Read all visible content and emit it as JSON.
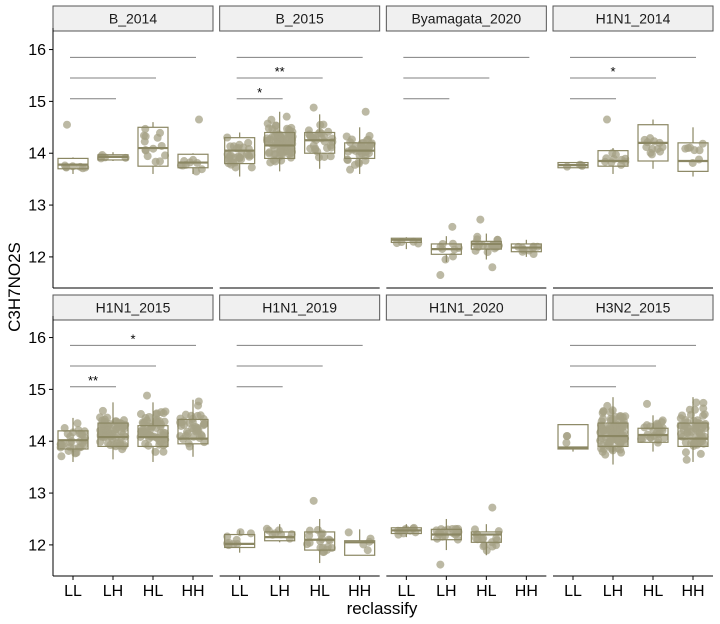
{
  "chart_data": {
    "type": "box",
    "title": "",
    "xlabel": "reclassify",
    "ylabel": "C3H7NO2S",
    "categories": [
      "LL",
      "LH",
      "HL",
      "HH"
    ],
    "ylim": [
      11.4,
      16.3
    ],
    "yticks": [
      12,
      13,
      14,
      15,
      16
    ],
    "grid": false,
    "colors": {
      "box": "#8b8763",
      "point": "#a5a286",
      "sig_line": "#808080"
    },
    "panels": [
      {
        "name": "B_2014",
        "boxes": [
          {
            "category": "LL",
            "q1": 13.7,
            "median": 13.78,
            "q3": 13.9,
            "low": 13.6,
            "high": 13.92,
            "n": 7
          },
          {
            "category": "LH",
            "q1": 13.87,
            "median": 13.93,
            "q3": 13.97,
            "low": 13.85,
            "high": 14.02,
            "n": 5
          },
          {
            "category": "HL",
            "q1": 13.75,
            "median": 14.1,
            "q3": 14.5,
            "low": 13.6,
            "high": 14.6,
            "n": 14
          },
          {
            "category": "HH",
            "q1": 13.72,
            "median": 13.82,
            "q3": 13.98,
            "low": 13.6,
            "high": 14.0,
            "n": 9
          }
        ],
        "outliers": [
          {
            "category": "LL",
            "y": 14.55
          },
          {
            "category": "HH",
            "y": 14.65
          }
        ],
        "comparisons": [
          {
            "from": "LL",
            "to": "LH",
            "y": 15.05,
            "label": ""
          },
          {
            "from": "LL",
            "to": "HL",
            "y": 15.45,
            "label": ""
          },
          {
            "from": "LL",
            "to": "HH",
            "y": 15.85,
            "label": ""
          }
        ]
      },
      {
        "name": "B_2015",
        "boxes": [
          {
            "category": "LL",
            "q1": 13.8,
            "median": 14.05,
            "q3": 14.3,
            "low": 13.55,
            "high": 14.4,
            "n": 30
          },
          {
            "category": "LH",
            "q1": 13.9,
            "median": 14.15,
            "q3": 14.4,
            "low": 13.65,
            "high": 14.8,
            "n": 80
          },
          {
            "category": "HL",
            "q1": 14.0,
            "median": 14.25,
            "q3": 14.4,
            "low": 13.7,
            "high": 14.75,
            "n": 30
          },
          {
            "category": "HH",
            "q1": 13.9,
            "median": 14.05,
            "q3": 14.2,
            "low": 13.6,
            "high": 14.5,
            "n": 40
          }
        ],
        "outliers": [
          {
            "category": "HL",
            "y": 14.88
          },
          {
            "category": "HH",
            "y": 14.8
          }
        ],
        "comparisons": [
          {
            "from": "LL",
            "to": "LH",
            "y": 15.05,
            "label": "*"
          },
          {
            "from": "LL",
            "to": "HL",
            "y": 15.45,
            "label": "**"
          },
          {
            "from": "LL",
            "to": "HH",
            "y": 15.85,
            "label": ""
          }
        ]
      },
      {
        "name": "Byamagata_2020",
        "boxes": [
          {
            "category": "LL",
            "q1": 12.28,
            "median": 12.33,
            "q3": 12.36,
            "low": 12.15,
            "high": 12.38,
            "n": 4
          },
          {
            "category": "LH",
            "q1": 12.05,
            "median": 12.15,
            "q3": 12.25,
            "low": 11.9,
            "high": 12.4,
            "n": 8
          },
          {
            "category": "HL",
            "q1": 12.15,
            "median": 12.25,
            "q3": 12.3,
            "low": 11.95,
            "high": 12.45,
            "n": 20
          },
          {
            "category": "HH",
            "q1": 12.1,
            "median": 12.18,
            "q3": 12.25,
            "low": 12.0,
            "high": 12.33,
            "n": 10
          }
        ],
        "outliers": [
          {
            "category": "LH",
            "y": 11.65
          },
          {
            "category": "LH",
            "y": 12.58
          },
          {
            "category": "HL",
            "y": 12.72
          },
          {
            "category": "HL",
            "y": 11.8
          }
        ],
        "comparisons": [
          {
            "from": "LL",
            "to": "LH",
            "y": 15.05,
            "label": ""
          },
          {
            "from": "LL",
            "to": "HL",
            "y": 15.45,
            "label": ""
          },
          {
            "from": "LL",
            "to": "HH",
            "y": 15.85,
            "label": ""
          }
        ]
      },
      {
        "name": "H1N1_2014",
        "boxes": [
          {
            "category": "LL",
            "q1": 13.72,
            "median": 13.77,
            "q3": 13.82,
            "low": 13.72,
            "high": 13.82,
            "n": 4
          },
          {
            "category": "LH",
            "q1": 13.75,
            "median": 13.85,
            "q3": 14.05,
            "low": 13.6,
            "high": 14.1,
            "n": 10
          },
          {
            "category": "HL",
            "q1": 13.85,
            "median": 14.2,
            "q3": 14.55,
            "low": 13.7,
            "high": 14.65,
            "n": 12
          },
          {
            "category": "HH",
            "q1": 13.65,
            "median": 13.85,
            "q3": 14.2,
            "low": 13.55,
            "high": 14.5,
            "n": 8
          }
        ],
        "outliers": [
          {
            "category": "LH",
            "y": 14.65
          }
        ],
        "comparisons": [
          {
            "from": "LL",
            "to": "LH",
            "y": 15.05,
            "label": ""
          },
          {
            "from": "LL",
            "to": "HL",
            "y": 15.45,
            "label": "*"
          },
          {
            "from": "LL",
            "to": "HH",
            "y": 15.85,
            "label": ""
          }
        ]
      },
      {
        "name": "H1N1_2015",
        "boxes": [
          {
            "category": "LL",
            "q1": 13.85,
            "median": 14.02,
            "q3": 14.2,
            "low": 13.6,
            "high": 14.45,
            "n": 30
          },
          {
            "category": "LH",
            "q1": 13.9,
            "median": 14.08,
            "q3": 14.35,
            "low": 13.65,
            "high": 14.75,
            "n": 70
          },
          {
            "category": "HL",
            "q1": 13.9,
            "median": 14.08,
            "q3": 14.3,
            "low": 13.6,
            "high": 14.75,
            "n": 60
          },
          {
            "category": "HH",
            "q1": 13.95,
            "median": 14.05,
            "q3": 14.42,
            "low": 13.7,
            "high": 14.8,
            "n": 40
          }
        ],
        "outliers": [
          {
            "category": "HL",
            "y": 14.88
          }
        ],
        "comparisons": [
          {
            "from": "LL",
            "to": "LH",
            "y": 15.05,
            "label": "**"
          },
          {
            "from": "LL",
            "to": "HL",
            "y": 15.45,
            "label": ""
          },
          {
            "from": "LL",
            "to": "HH",
            "y": 15.85,
            "label": "*"
          }
        ]
      },
      {
        "name": "H1N1_2019",
        "boxes": [
          {
            "category": "LL",
            "q1": 11.95,
            "median": 12.02,
            "q3": 12.2,
            "low": 11.85,
            "high": 12.28,
            "n": 9
          },
          {
            "category": "LH",
            "q1": 12.08,
            "median": 12.15,
            "q3": 12.25,
            "low": 12.05,
            "high": 12.4,
            "n": 8
          },
          {
            "category": "HL",
            "q1": 11.9,
            "median": 12.1,
            "q3": 12.25,
            "low": 11.65,
            "high": 12.5,
            "n": 18
          },
          {
            "category": "HH",
            "q1": 11.8,
            "median": 12.05,
            "q3": 12.08,
            "low": 11.8,
            "high": 12.3,
            "n": 5
          }
        ],
        "outliers": [
          {
            "category": "HL",
            "y": 12.85
          }
        ],
        "comparisons": [
          {
            "from": "LL",
            "to": "LH",
            "y": 15.05,
            "label": ""
          },
          {
            "from": "LL",
            "to": "HL",
            "y": 15.45,
            "label": ""
          },
          {
            "from": "LL",
            "to": "HH",
            "y": 15.85,
            "label": ""
          }
        ]
      },
      {
        "name": "H1N1_2020",
        "boxes": [
          {
            "category": "LL",
            "q1": 12.22,
            "median": 12.28,
            "q3": 12.33,
            "low": 12.15,
            "high": 12.4,
            "n": 10
          },
          {
            "category": "LH",
            "q1": 12.1,
            "median": 12.2,
            "q3": 12.3,
            "low": 11.9,
            "high": 12.5,
            "n": 20
          },
          {
            "category": "HL",
            "q1": 12.05,
            "median": 12.2,
            "q3": 12.25,
            "low": 11.8,
            "high": 12.4,
            "n": 15
          }
        ],
        "outliers": [
          {
            "category": "LH",
            "y": 11.62
          },
          {
            "category": "HL",
            "y": 12.72
          }
        ],
        "comparisons": []
      },
      {
        "name": "H3N2_2015",
        "boxes": [
          {
            "category": "LL",
            "q1": 13.85,
            "median": 13.88,
            "q3": 14.32,
            "low": 13.8,
            "high": 14.32,
            "n": 3
          },
          {
            "category": "LH",
            "q1": 13.9,
            "median": 14.1,
            "q3": 14.35,
            "low": 13.55,
            "high": 14.85,
            "n": 90
          },
          {
            "category": "HL",
            "q1": 13.98,
            "median": 14.12,
            "q3": 14.25,
            "low": 13.8,
            "high": 14.5,
            "n": 25
          },
          {
            "category": "HH",
            "q1": 13.9,
            "median": 14.05,
            "q3": 14.35,
            "low": 13.6,
            "high": 14.85,
            "n": 60
          }
        ],
        "outliers": [
          {
            "category": "HL",
            "y": 14.72
          }
        ],
        "comparisons": [
          {
            "from": "LL",
            "to": "LH",
            "y": 15.05,
            "label": ""
          },
          {
            "from": "LL",
            "to": "HL",
            "y": 15.45,
            "label": ""
          },
          {
            "from": "LL",
            "to": "HH",
            "y": 15.85,
            "label": ""
          }
        ]
      }
    ]
  }
}
